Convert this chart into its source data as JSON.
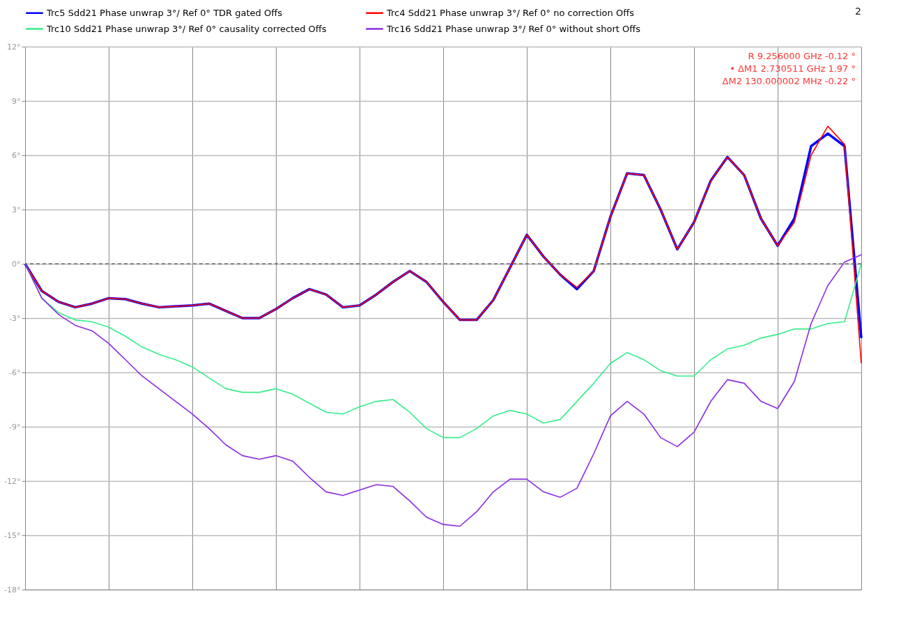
{
  "chart_data": {
    "type": "line",
    "categories": [
      null,
      null,
      null,
      null,
      null,
      null,
      null,
      null,
      null,
      null,
      null,
      null,
      null,
      null,
      null,
      null,
      null,
      null,
      null,
      null,
      null,
      null,
      null,
      null,
      null,
      null,
      null,
      null,
      null,
      null,
      null,
      null,
      null,
      null,
      null,
      null,
      null,
      null,
      null,
      null,
      null,
      null,
      null,
      null,
      null,
      null,
      null,
      null,
      null,
      null,
      null
    ],
    "series": [
      {
        "name": "Trc5  Sdd21  Phase unwrap  3°/ Ref 0°  TDR gated  Offs",
        "color": "#0000ff",
        "values": [
          0,
          -1.5,
          -2.1,
          -2.4,
          -2.2,
          -1.9,
          -1.95,
          -2.2,
          -2.4,
          -2.35,
          -2.3,
          -2.2,
          -2.6,
          -3.0,
          -3.0,
          -2.5,
          -1.9,
          -1.4,
          -1.7,
          -2.4,
          -2.3,
          -1.7,
          -1.0,
          -0.4,
          -1.0,
          -2.1,
          -3.1,
          -3.1,
          -2.0,
          -0.2,
          1.6,
          0.4,
          -0.6,
          -1.4,
          -0.4,
          2.6,
          5.0,
          4.9,
          3.0,
          0.8,
          2.3,
          4.6,
          5.9,
          4.9,
          2.5,
          1.0,
          2.5,
          6.5,
          7.2,
          6.5,
          -4.1
        ]
      },
      {
        "name": "Trc4  Sdd21  Phase unwrap  3°/ Ref 0°  no correction  Offs",
        "color": "#ff0000",
        "values": [
          0,
          -1.5,
          -2.1,
          -2.4,
          -2.2,
          -1.9,
          -1.95,
          -2.2,
          -2.4,
          -2.35,
          -2.3,
          -2.2,
          -2.6,
          -3.0,
          -3.0,
          -2.5,
          -1.9,
          -1.4,
          -1.7,
          -2.4,
          -2.3,
          -1.7,
          -1.0,
          -0.4,
          -1.0,
          -2.1,
          -3.1,
          -3.1,
          -2.0,
          -0.2,
          1.6,
          0.4,
          -0.6,
          -1.3,
          -0.4,
          2.6,
          5.0,
          4.9,
          3.0,
          0.8,
          2.3,
          4.6,
          5.9,
          4.9,
          2.5,
          1.0,
          2.3,
          6.0,
          7.6,
          6.6,
          -5.5
        ]
      },
      {
        "name": "Trc10  Sdd21  Phase unwrap  3°/ Ref 0°  causality corrected  Offs",
        "color": "#33ee88",
        "values": [
          0,
          -1.9,
          -2.7,
          -3.1,
          -3.2,
          -3.5,
          -4.0,
          -4.6,
          -5.0,
          -5.3,
          -5.7,
          -6.3,
          -6.9,
          -7.1,
          -7.1,
          -6.9,
          -7.2,
          -7.7,
          -8.2,
          -8.3,
          -7.9,
          -7.6,
          -7.5,
          -8.2,
          -9.1,
          -9.6,
          -9.6,
          -9.1,
          -8.4,
          -8.1,
          -8.3,
          -8.8,
          -8.6,
          -7.6,
          -6.6,
          -5.5,
          -4.9,
          -5.3,
          -5.9,
          -6.2,
          -6.2,
          -5.3,
          -4.7,
          -4.5,
          -4.1,
          -3.9,
          -3.6,
          -3.6,
          -3.3,
          -3.2,
          0
        ]
      },
      {
        "name": "Trc16  Sdd21  Phase unwrap  3°/ Ref 0°  without short  Offs",
        "color": "#8a2be2",
        "values": [
          0,
          -1.9,
          -2.8,
          -3.4,
          -3.7,
          -4.4,
          -5.3,
          -6.2,
          -6.9,
          -7.6,
          -8.3,
          -9.1,
          -10.0,
          -10.6,
          -10.8,
          -10.6,
          -10.9,
          -11.8,
          -12.6,
          -12.8,
          -12.5,
          -12.2,
          -12.3,
          -13.1,
          -14.0,
          -14.4,
          -14.5,
          -13.7,
          -12.6,
          -11.9,
          -11.9,
          -12.6,
          -12.9,
          -12.4,
          -10.5,
          -8.4,
          -7.6,
          -8.3,
          -9.6,
          -10.1,
          -9.3,
          -7.6,
          -6.4,
          -6.6,
          -7.6,
          -8.0,
          -6.5,
          -3.3,
          -1.2,
          0.1,
          0.5
        ]
      }
    ],
    "ylim": [
      -18,
      12
    ],
    "yticks": [
      {
        "value": -18,
        "label": "-18°"
      },
      {
        "value": -15,
        "label": "-15°"
      },
      {
        "value": -12,
        "label": "-12°"
      },
      {
        "value": -9,
        "label": "-9°"
      },
      {
        "value": -6,
        "label": "-6°"
      },
      {
        "value": -3,
        "label": "-3°"
      },
      {
        "value": 0,
        "label": "0°"
      },
      {
        "value": 3,
        "label": "3°"
      },
      {
        "value": 6,
        "label": "6°"
      },
      {
        "value": 9,
        "label": "9°"
      },
      {
        "value": 12,
        "label": "12°"
      }
    ],
    "grid": true,
    "legend": "top",
    "tick_labels": "y",
    "ref_lines": [
      {
        "axis": "y",
        "value": 0,
        "label": null,
        "color": "#666666",
        "line_style": "dashed"
      }
    ],
    "annotations": [
      "R   9.256000 GHz   -0.12 °",
      "• ΔM1   2.730511 GHz   1.97 °",
      "ΔM2   130.000002 MHz   -0.22 °",
      "2"
    ]
  }
}
